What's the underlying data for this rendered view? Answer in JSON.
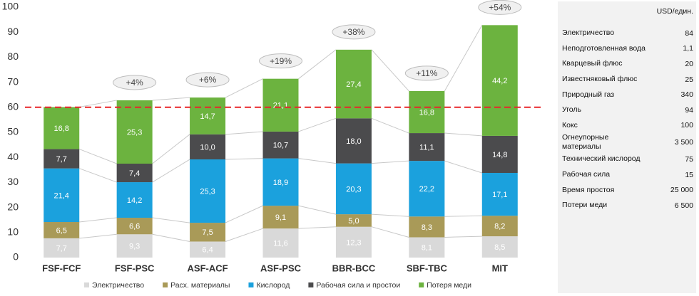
{
  "chart_data": {
    "type": "stacked_bar",
    "categories": [
      "FSF-FCF",
      "FSF-PSC",
      "ASF-ACF",
      "ASF-PSC",
      "BBR-BCC",
      "SBF-TBC",
      "MIT"
    ],
    "series": [
      {
        "name": "Электричество",
        "color": "#d9d9d9",
        "values": [
          7.7,
          9.3,
          6.4,
          11.6,
          12.3,
          8.1,
          8.5
        ],
        "value_labels": [
          "7,7",
          "9,3",
          "6,4",
          "11,6",
          "12,3",
          "8,1",
          "8,5"
        ]
      },
      {
        "name": "Расх. материалы",
        "color": "#a99a58",
        "values": [
          6.5,
          6.6,
          7.5,
          9.1,
          5.0,
          8.3,
          8.2
        ],
        "value_labels": [
          "6,5",
          "6,6",
          "7,5",
          "9,1",
          "5,0",
          "8,3",
          "8,2"
        ]
      },
      {
        "name": "Кислород",
        "color": "#1ba1dd",
        "values": [
          21.4,
          14.2,
          25.3,
          18.9,
          20.3,
          22.2,
          17.1
        ],
        "value_labels": [
          "21,4",
          "14,2",
          "25,3",
          "18,9",
          "20,3",
          "22,2",
          "17,1"
        ]
      },
      {
        "name": "Рабочая сила и простои",
        "color": "#4b4b4d",
        "values": [
          7.7,
          7.4,
          10.0,
          10.7,
          18.0,
          11.1,
          14.8
        ],
        "value_labels": [
          "7,7",
          "7,4",
          "10,0",
          "10,7",
          "18,0",
          "11,1",
          "14,8"
        ]
      },
      {
        "name": "Потеря меди",
        "color": "#6cb33f",
        "values": [
          16.8,
          25.3,
          14.7,
          21.1,
          27.4,
          16.8,
          44.2
        ],
        "value_labels": [
          "16,8",
          "25,3",
          "14,7",
          "21,1",
          "27,4",
          "16,8",
          "44,2"
        ]
      }
    ],
    "annotations": [
      null,
      "+4%",
      "+6%",
      "+19%",
      "+38%",
      "+11%",
      "+54%"
    ],
    "reference_line": 60,
    "reference_color": "#e8262a",
    "ylim": [
      0,
      100
    ],
    "yticks": [
      0,
      10,
      20,
      30,
      40,
      50,
      60,
      70,
      80,
      90,
      100
    ],
    "grid": false
  },
  "table": {
    "header": "USD/един.",
    "rows": [
      [
        "Электричество",
        "84"
      ],
      [
        "Неподготовленная вода",
        "1,1"
      ],
      [
        "Кварцевый флюс",
        "20"
      ],
      [
        "Известняковый флюс",
        "25"
      ],
      [
        "Природный газ",
        "340"
      ],
      [
        "Уголь",
        "94"
      ],
      [
        "Кокс",
        "100"
      ],
      [
        "Огнеупорные материалы",
        "3 500"
      ],
      [
        "Технический кислород",
        "75"
      ],
      [
        "Рабочая сила",
        "15"
      ],
      [
        "Время простоя",
        "25 000"
      ],
      [
        "Потери меди",
        "6 500"
      ]
    ]
  }
}
